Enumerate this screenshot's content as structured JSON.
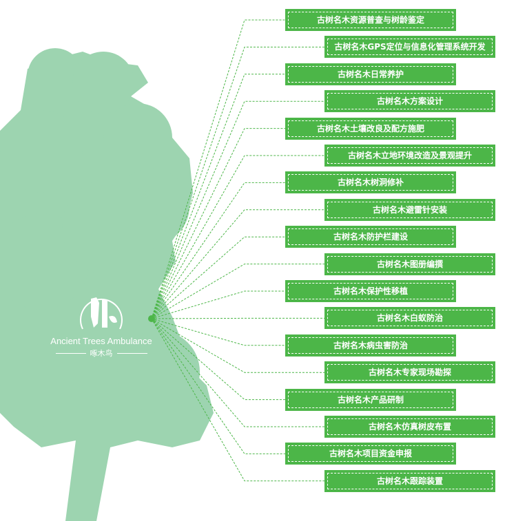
{
  "colors": {
    "tree": "#9dd4b0",
    "box": "#4cb648",
    "line": "#4cb648"
  },
  "logo": {
    "name_en": "Ancient Trees Ambulance",
    "name_cn": "啄木鸟"
  },
  "services": [
    "古树名木资源普查与树龄鉴定",
    "古树名木GPS定位与信息化管理系统开发",
    "古树名木日常养护",
    "古树名木方案设计",
    "古树名木土壤改良及配方施肥",
    "古树名木立地环境改造及景观提升",
    "古树名木树洞修补",
    "古树名木避雷针安装",
    "古树名木防护栏建设",
    "古树名木图册编撰",
    "古树名木保护性移植",
    "古树名木白蚁防治",
    "古树名木病虫害防治",
    "古树名木专家现场勘探",
    "古树名木产品研制",
    "古树名木仿真树皮布置",
    "古树名木项目资金申报",
    "古树名木跟踪装置"
  ]
}
